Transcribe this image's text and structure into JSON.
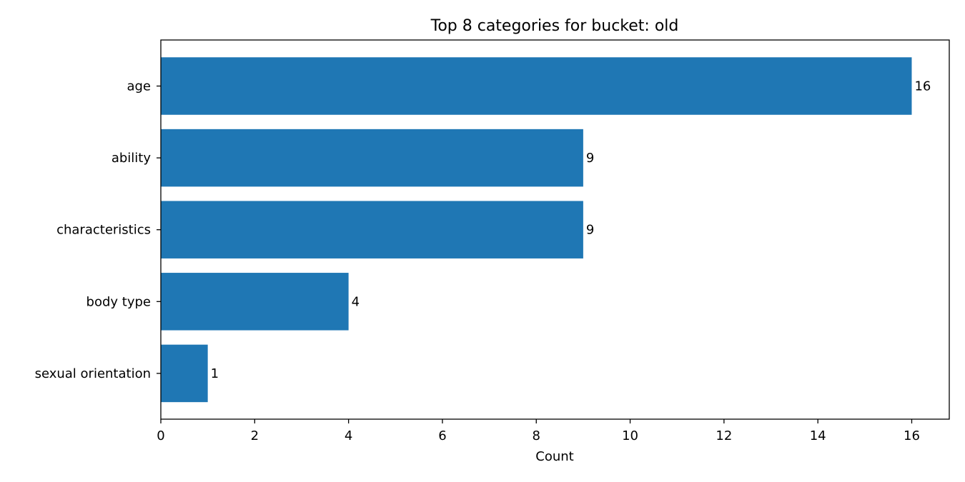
{
  "chart_data": {
    "type": "bar",
    "orientation": "horizontal",
    "title": "Top 8 categories for bucket: old",
    "xlabel": "Count",
    "ylabel": "",
    "categories": [
      "age",
      "ability",
      "characteristics",
      "body type",
      "sexual orientation"
    ],
    "values": [
      16,
      9,
      9,
      4,
      1
    ],
    "data_labels": [
      "16",
      "9",
      "9",
      "4",
      "1"
    ],
    "xlim": [
      0,
      16.8
    ],
    "xticks": [
      0,
      2,
      4,
      6,
      8,
      10,
      12,
      14,
      16
    ],
    "xtick_labels": [
      "0",
      "2",
      "4",
      "6",
      "8",
      "10",
      "12",
      "14",
      "16"
    ],
    "grid": false,
    "legend": "none",
    "bar_color": "#1f77b4"
  }
}
